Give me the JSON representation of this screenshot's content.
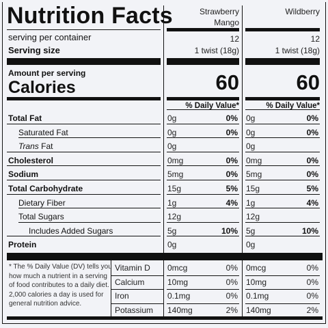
{
  "label": {
    "title": "Nutrition Facts",
    "servings_label": "serving per container",
    "serving_size_label": "Serving size",
    "amount_per_serving": "Amount per serving",
    "calories_label": "Calories",
    "daily_value_header": "% Daily Value*",
    "rows": [
      {
        "label": "Total Fat",
        "bold": true,
        "indent": 0
      },
      {
        "label": "Saturated Fat",
        "bold": false,
        "indent": 1
      },
      {
        "label": "Trans",
        "suffix": " Fat",
        "italic": true,
        "indent": 1
      },
      {
        "label": "Cholesterol",
        "bold": true,
        "indent": 0
      },
      {
        "label": "Sodium",
        "bold": true,
        "indent": 0
      },
      {
        "label": "Total Carbohydrate",
        "bold": true,
        "indent": 0
      },
      {
        "label": "Dietary Fiber",
        "bold": false,
        "indent": 1
      },
      {
        "label": "Total Sugars",
        "bold": false,
        "indent": 1
      },
      {
        "label": "Includes Added Sugars",
        "bold": false,
        "indent": 2
      },
      {
        "label": "Protein",
        "bold": true,
        "indent": 0
      }
    ],
    "footnote": [
      "* The % Daily Value (DV) tells you",
      "how much a nutrient in a serving",
      "of food contributes to a daily diet.",
      "2,000 calories a day is used for",
      "general nutrition advice."
    ],
    "vitamins": [
      "Vitamin D",
      "Calcium",
      "Iron",
      "Potassium"
    ]
  },
  "products": [
    {
      "name_lines": [
        "Strawberry",
        "Mango"
      ],
      "servings": "12",
      "serving_size": "1 twist (18g)",
      "calories": "60",
      "rows": [
        {
          "amount": "0g",
          "dv": "0%"
        },
        {
          "amount": "0g",
          "dv": "0%"
        },
        {
          "amount": "0g",
          "dv": ""
        },
        {
          "amount": "0mg",
          "dv": "0%"
        },
        {
          "amount": "5mg",
          "dv": "0%"
        },
        {
          "amount": "15g",
          "dv": "5%"
        },
        {
          "amount": "1g",
          "dv": "4%"
        },
        {
          "amount": "12g",
          "dv": ""
        },
        {
          "amount": "5g",
          "dv": "10%"
        },
        {
          "amount": "0g",
          "dv": ""
        }
      ],
      "vitamins": [
        {
          "amount": "0mcg",
          "dv": "0%"
        },
        {
          "amount": "10mg",
          "dv": "0%"
        },
        {
          "amount": "0.1mg",
          "dv": "0%"
        },
        {
          "amount": "140mg",
          "dv": "2%"
        }
      ]
    },
    {
      "name_lines": [
        "Wildberry"
      ],
      "servings": "12",
      "serving_size": "1 twist (18g)",
      "calories": "60",
      "rows": [
        {
          "amount": "0g",
          "dv": "0%"
        },
        {
          "amount": "0g",
          "dv": "0%"
        },
        {
          "amount": "0g",
          "dv": ""
        },
        {
          "amount": "0mg",
          "dv": "0%"
        },
        {
          "amount": "5mg",
          "dv": "0%"
        },
        {
          "amount": "15g",
          "dv": "5%"
        },
        {
          "amount": "1g",
          "dv": "4%"
        },
        {
          "amount": "12g",
          "dv": ""
        },
        {
          "amount": "5g",
          "dv": "10%"
        },
        {
          "amount": "0g",
          "dv": ""
        }
      ],
      "vitamins": [
        {
          "amount": "0mcg",
          "dv": "0%"
        },
        {
          "amount": "10mg",
          "dv": "0%"
        },
        {
          "amount": "0.1mg",
          "dv": "0%"
        },
        {
          "amount": "140mg",
          "dv": "2%"
        }
      ]
    }
  ]
}
